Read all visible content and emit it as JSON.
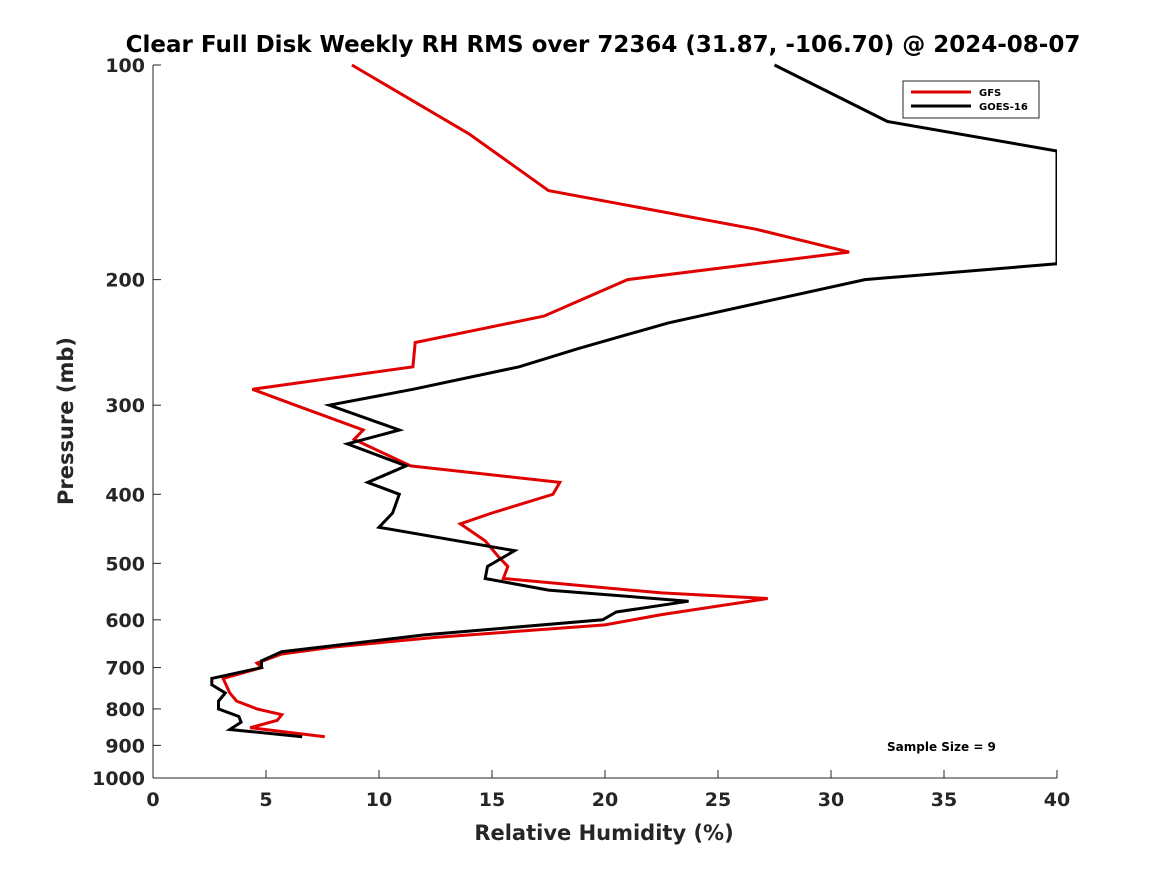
{
  "chart_data": {
    "type": "line",
    "title": "Clear Full Disk Weekly RH RMS over 72364 (31.87, -106.70) @ 2024-08-07",
    "xlabel": "Relative Humidity (%)",
    "ylabel": "Pressure (mb)",
    "xlim": [
      0,
      40
    ],
    "ylim": [
      100,
      1000
    ],
    "yscale": "log",
    "y_reversed": true,
    "xticks": [
      0,
      5,
      10,
      15,
      20,
      25,
      30,
      35,
      40
    ],
    "yticks": [
      100,
      200,
      300,
      400,
      500,
      600,
      700,
      800,
      900,
      1000
    ],
    "grid": false,
    "legend_position": "top-right",
    "annotation": "Sample Size = 9",
    "series": [
      {
        "name": "GFS",
        "color": "#e00000",
        "points": [
          [
            8.8,
            100
          ],
          [
            14.0,
            125
          ],
          [
            17.5,
            150
          ],
          [
            26.7,
            170
          ],
          [
            30.8,
            183
          ],
          [
            21.0,
            200
          ],
          [
            17.3,
            225
          ],
          [
            11.6,
            245
          ],
          [
            11.5,
            265
          ],
          [
            4.4,
            285
          ],
          [
            6.3,
            300
          ],
          [
            9.3,
            325
          ],
          [
            8.9,
            335
          ],
          [
            11.4,
            365
          ],
          [
            18.0,
            385
          ],
          [
            17.7,
            400
          ],
          [
            15.0,
            425
          ],
          [
            13.6,
            440
          ],
          [
            14.7,
            465
          ],
          [
            15.3,
            490
          ],
          [
            15.7,
            505
          ],
          [
            15.6,
            515
          ],
          [
            15.5,
            525
          ],
          [
            22.5,
            550
          ],
          [
            27.2,
            560
          ],
          [
            22.5,
            590
          ],
          [
            20.0,
            610
          ],
          [
            12.5,
            635
          ],
          [
            8.0,
            655
          ],
          [
            5.7,
            670
          ],
          [
            4.6,
            690
          ],
          [
            4.8,
            700
          ],
          [
            3.1,
            725
          ],
          [
            3.4,
            760
          ],
          [
            3.7,
            780
          ],
          [
            4.6,
            800
          ],
          [
            5.7,
            815
          ],
          [
            5.5,
            830
          ],
          [
            4.3,
            850
          ],
          [
            7.6,
            875
          ]
        ]
      },
      {
        "name": "GOES-16",
        "color": "#000000",
        "points": [
          [
            27.5,
            100
          ],
          [
            32.5,
            120
          ],
          [
            40.0,
            132
          ],
          [
            40.0,
            190
          ],
          [
            31.5,
            200
          ],
          [
            22.8,
            230
          ],
          [
            18.8,
            250
          ],
          [
            16.2,
            265
          ],
          [
            11.5,
            285
          ],
          [
            7.8,
            300
          ],
          [
            10.9,
            325
          ],
          [
            8.6,
            340
          ],
          [
            11.2,
            365
          ],
          [
            9.5,
            385
          ],
          [
            10.9,
            400
          ],
          [
            10.6,
            425
          ],
          [
            10.0,
            445
          ],
          [
            16.0,
            480
          ],
          [
            14.8,
            505
          ],
          [
            14.7,
            525
          ],
          [
            17.5,
            545
          ],
          [
            23.7,
            565
          ],
          [
            20.5,
            585
          ],
          [
            19.9,
            600
          ],
          [
            12.0,
            630
          ],
          [
            5.7,
            665
          ],
          [
            4.8,
            685
          ],
          [
            4.8,
            700
          ],
          [
            2.6,
            725
          ],
          [
            2.6,
            740
          ],
          [
            3.2,
            760
          ],
          [
            2.9,
            780
          ],
          [
            2.9,
            800
          ],
          [
            3.8,
            820
          ],
          [
            3.9,
            835
          ],
          [
            3.4,
            855
          ],
          [
            6.6,
            875
          ]
        ]
      }
    ]
  }
}
